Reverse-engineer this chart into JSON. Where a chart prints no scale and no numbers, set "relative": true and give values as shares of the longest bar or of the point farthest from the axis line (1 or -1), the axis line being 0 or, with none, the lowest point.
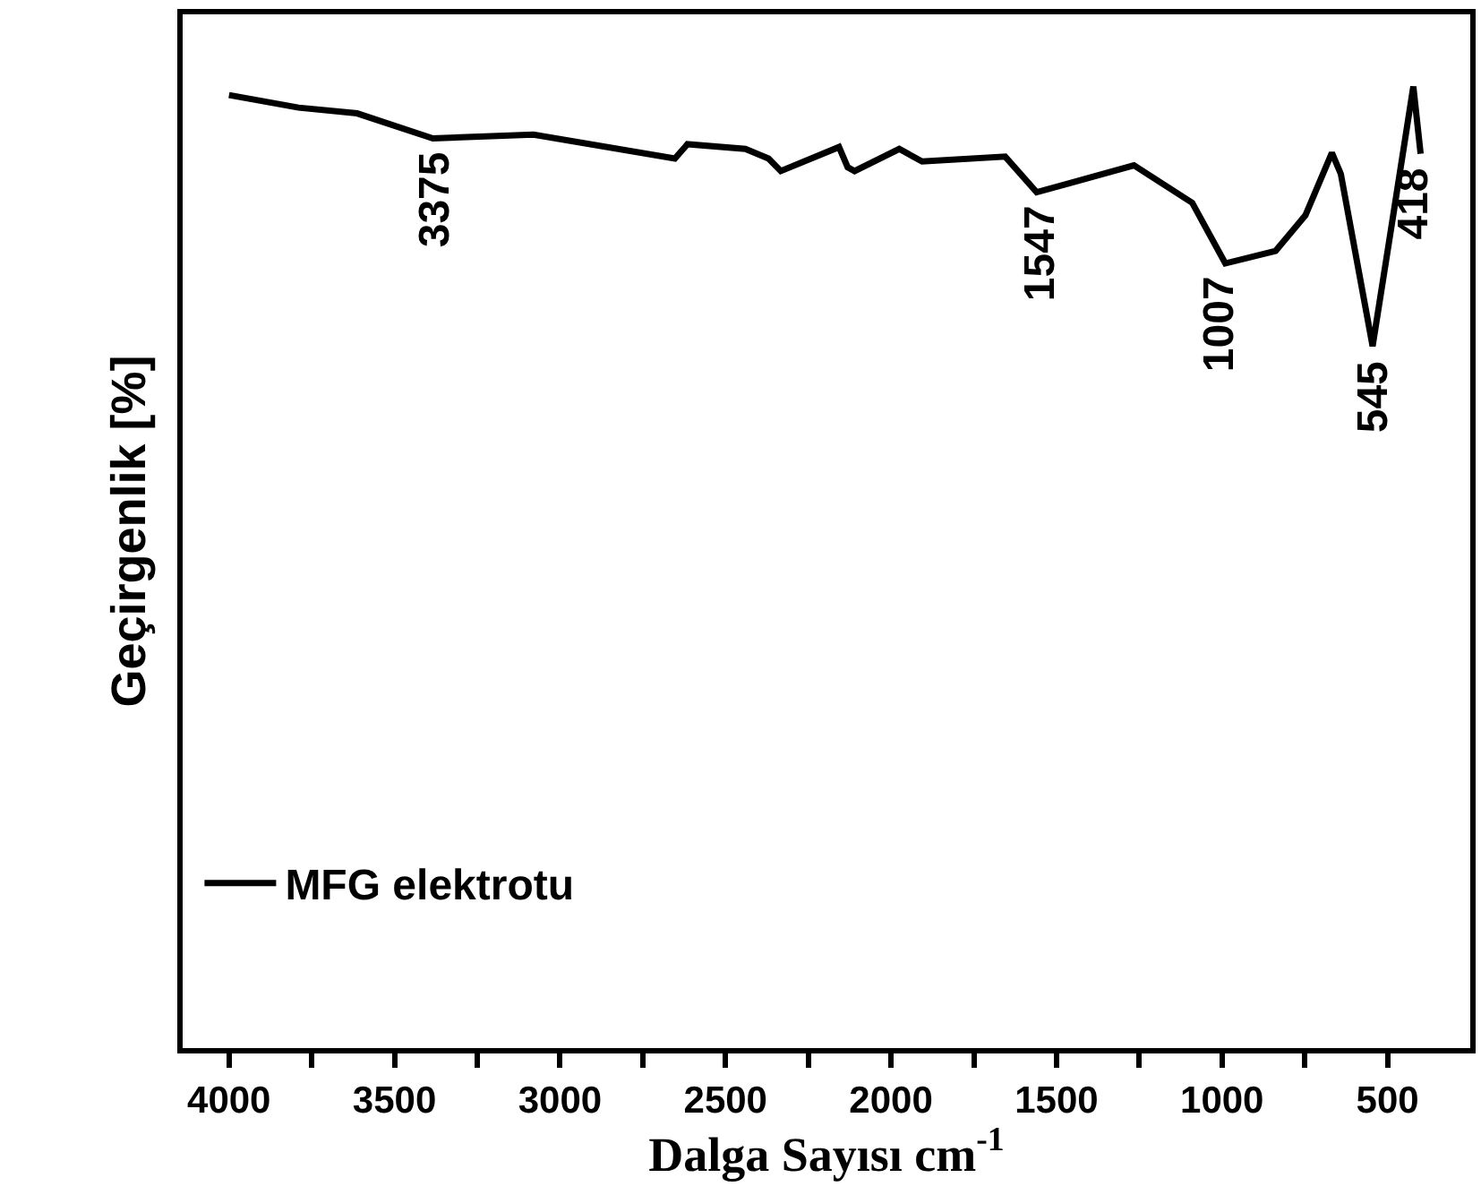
{
  "chart_data": {
    "type": "line",
    "relative": true,
    "xlabel": "Dalga Sayısı cm$^{-1}$",
    "ylabel": "Geçirgenlik [%]",
    "xlim": [
      4140,
      250
    ],
    "xticks": [
      4000,
      {
        "value": 3750,
        "label": null
      },
      3500,
      {
        "value": 3250,
        "label": null
      },
      3000,
      {
        "value": 2750,
        "label": null
      },
      2500,
      {
        "value": 2250,
        "label": null
      },
      2000,
      {
        "value": 1750,
        "label": null
      },
      1500,
      {
        "value": 1250,
        "label": null
      },
      1000,
      {
        "value": 750,
        "label": null
      },
      500
    ],
    "tick_labels": "x",
    "legend": "bottom left",
    "marker": "none",
    "line_style": "solid",
    "series": [
      {
        "name": "MFG elektrotu",
        "color": "#000000",
        "x": [
          4000,
          3790,
          3613,
          3384,
          3080,
          2653,
          2615,
          2440,
          2370,
          2333,
          2157,
          2131,
          2110,
          1975,
          1906,
          1655,
          1560,
          1464,
          1266,
          1090,
          990,
          838,
          748,
          668,
          641,
          545,
          480,
          422,
          400
        ],
        "values": [
          0.991,
          0.978,
          0.972,
          0.946,
          0.95,
          0.925,
          0.94,
          0.935,
          0.925,
          0.912,
          0.937,
          0.916,
          0.912,
          0.935,
          0.922,
          0.927,
          0.89,
          0.899,
          0.918,
          0.879,
          0.816,
          0.829,
          0.866,
          0.931,
          0.909,
          0.73,
          0.872,
          1,
          0.93
        ]
      }
    ],
    "annotations": [
      {
        "text": "3375",
        "x": 3375,
        "y": 0.946
      },
      {
        "text": "1547",
        "x": 1547,
        "y": 0.89
      },
      {
        "text": "1007",
        "x": 1007,
        "y": 0.816
      },
      {
        "text": "545",
        "x": 545,
        "y": 0.73
      },
      {
        "text": "418",
        "x": 418,
        "y": 0.93
      }
    ]
  }
}
